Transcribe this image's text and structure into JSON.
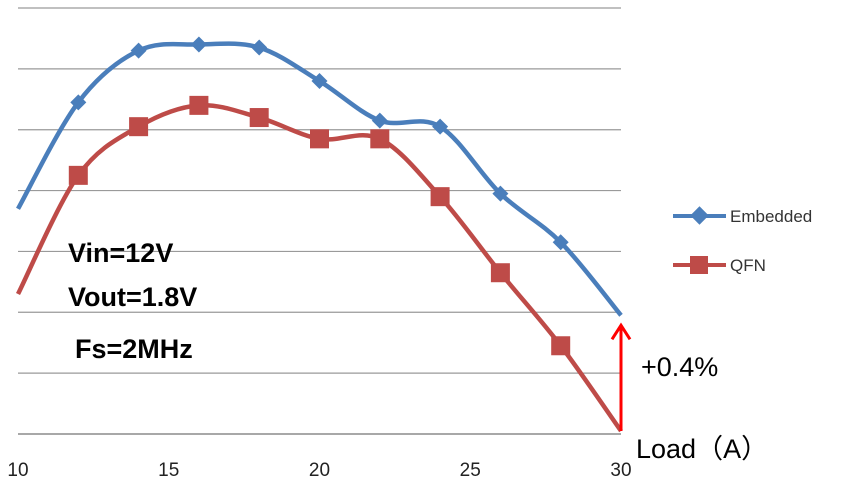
{
  "chart_data": {
    "type": "line",
    "title": "",
    "xlabel": "Load（A）",
    "ylabel": "",
    "xlim": [
      10,
      30
    ],
    "ylim": [
      0,
      7
    ],
    "x_ticks": [
      "10",
      "15",
      "20",
      "25",
      "30"
    ],
    "grid": "horizontal",
    "legend_position": "right",
    "series": [
      {
        "name": "Embedded",
        "color": "#4a7ebb",
        "marker": "diamond",
        "x": [
          10,
          12,
          14,
          16,
          18,
          20,
          22,
          24,
          26,
          28,
          30
        ],
        "y": [
          3.7,
          5.45,
          6.3,
          6.4,
          6.35,
          5.8,
          5.15,
          5.05,
          3.95,
          3.15,
          1.95
        ]
      },
      {
        "name": "QFN",
        "color": "#be4b48",
        "marker": "square",
        "x": [
          10,
          12,
          14,
          16,
          18,
          20,
          22,
          24,
          26,
          28,
          30
        ],
        "y": [
          2.3,
          4.25,
          5.05,
          5.4,
          5.2,
          4.85,
          4.85,
          3.9,
          2.65,
          1.45,
          0.05
        ]
      }
    ],
    "annotations": {
      "conditions": [
        "Vin=12V",
        "Vout=1.8V",
        "Fs=2MHz"
      ],
      "delta_label": "+0.4%",
      "delta_color": "#ff0000"
    }
  }
}
